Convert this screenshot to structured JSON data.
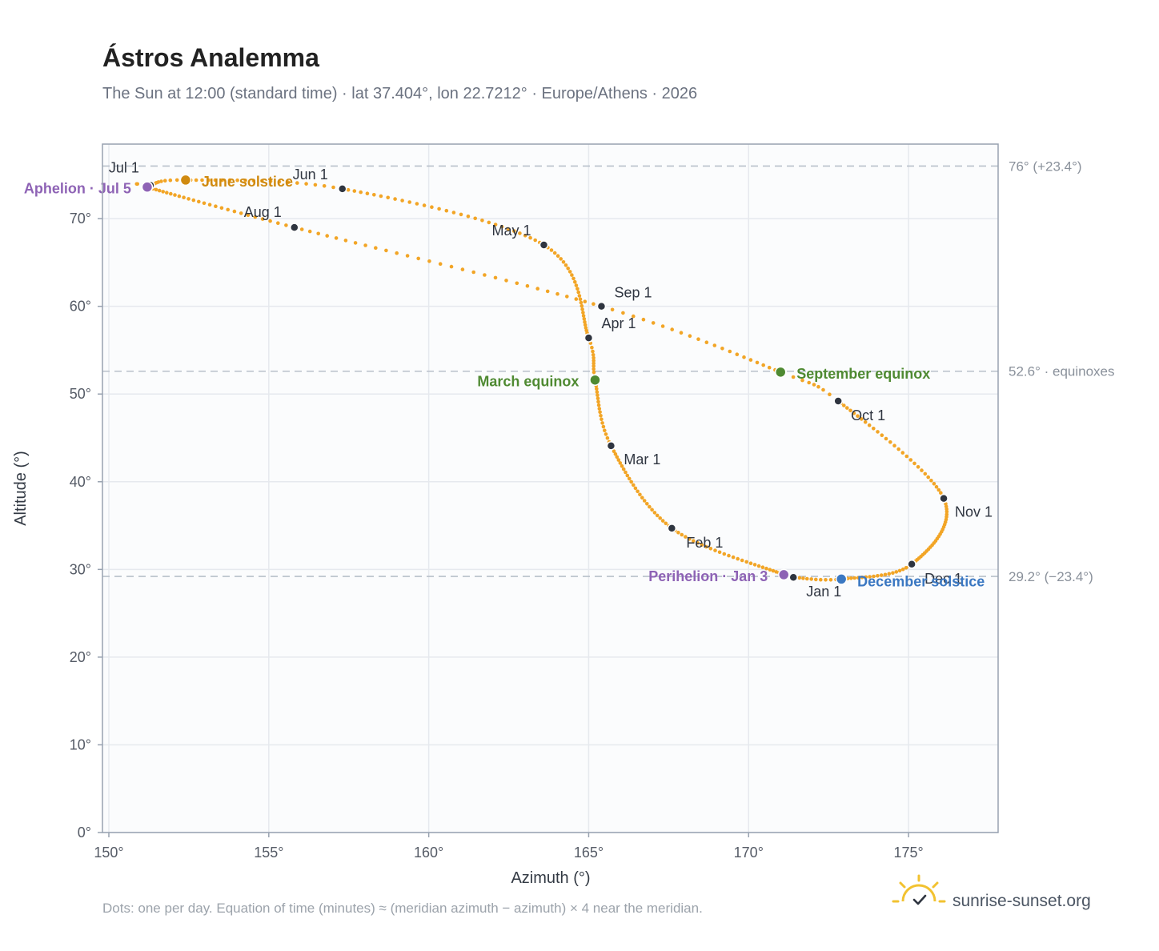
{
  "title": "Ástros Analemma",
  "subtitle": "The Sun at 12:00 (standard time) · lat 37.404°, lon 22.7212° · Europe/Athens · 2026",
  "footnote": "Dots: one per day. Equation of time (minutes) ≈ (meridian azimuth − azimuth) × 4 near the meridian.",
  "brand": {
    "name": "sunrise-sunset.org",
    "logo_icon": "sun-check-icon"
  },
  "colors": {
    "path": "#f2a526",
    "month_dot": "#2f3540",
    "grid": "#e6e9ee",
    "plot_bg": "#fbfcfd",
    "frame": "#98a2b0",
    "ref_line": "#b8c0ca",
    "equinox": "#4f8a32",
    "june_solstice": "#d08a10",
    "december_solstice": "#3b78c2",
    "apsis": "#8e63b5"
  },
  "chart_data": {
    "type": "scatter",
    "xlabel": "Azimuth (°)",
    "ylabel": "Altitude (°)",
    "xlim": [
      149.8,
      177.8
    ],
    "ylim": [
      0,
      78.5
    ],
    "xticks": [
      150,
      155,
      160,
      165,
      170,
      175
    ],
    "yticks": [
      0,
      10,
      20,
      30,
      40,
      50,
      60,
      70
    ],
    "xtick_labels": [
      "150°",
      "155°",
      "160°",
      "165°",
      "170°",
      "175°"
    ],
    "ytick_labels": [
      "0°",
      "10°",
      "20°",
      "30°",
      "40°",
      "50°",
      "60°",
      "70°"
    ],
    "grid": true,
    "reference_lines": [
      {
        "y": 76.0,
        "label": "76° (+23.4°)"
      },
      {
        "y": 52.6,
        "label": "52.6° · equinoxes"
      },
      {
        "y": 29.2,
        "label": "29.2° (−23.4°)"
      }
    ],
    "month_markers": [
      {
        "label": "Jan 1",
        "az": 171.4,
        "alt": 29.1
      },
      {
        "label": "Feb 1",
        "az": 167.6,
        "alt": 34.7
      },
      {
        "label": "Mar 1",
        "az": 165.7,
        "alt": 44.1
      },
      {
        "label": "Apr 1",
        "az": 165.0,
        "alt": 56.4
      },
      {
        "label": "May 1",
        "az": 163.6,
        "alt": 67.0
      },
      {
        "label": "Jun 1",
        "az": 157.3,
        "alt": 73.4
      },
      {
        "label": "Jul 1",
        "az": 151.3,
        "alt": 73.8
      },
      {
        "label": "Aug 1",
        "az": 155.8,
        "alt": 69.0
      },
      {
        "label": "Sep 1",
        "az": 165.4,
        "alt": 60.0
      },
      {
        "label": "Oct 1",
        "az": 172.8,
        "alt": 49.2
      },
      {
        "label": "Nov 1",
        "az": 176.1,
        "alt": 38.1
      },
      {
        "label": "Dec 1",
        "az": 175.1,
        "alt": 30.6
      }
    ],
    "events": [
      {
        "label": "March equinox",
        "az": 165.2,
        "alt": 51.6,
        "kind": "equinox"
      },
      {
        "label": "June solstice",
        "az": 152.4,
        "alt": 74.4,
        "kind": "june_solstice"
      },
      {
        "label": "September equinox",
        "az": 171.0,
        "alt": 52.5,
        "kind": "equinox"
      },
      {
        "label": "December solstice",
        "az": 172.9,
        "alt": 28.9,
        "kind": "december_solstice"
      },
      {
        "label": "Aphelion · Jul 5",
        "az": 151.2,
        "alt": 73.6,
        "kind": "apsis"
      },
      {
        "label": "Perihelion · Jan 3",
        "az": 171.1,
        "alt": 29.4,
        "kind": "apsis"
      }
    ]
  }
}
